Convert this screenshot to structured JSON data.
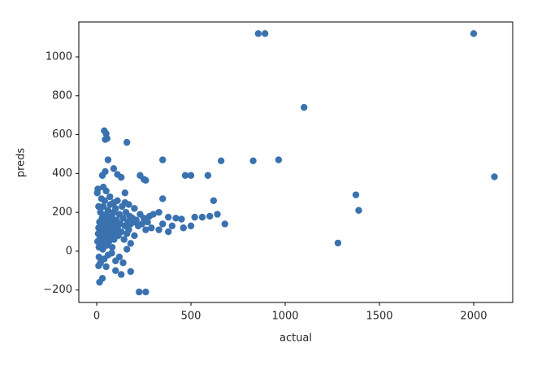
{
  "chart_data": {
    "type": "scatter",
    "xlabel": "actual",
    "ylabel": "preds",
    "color": "#3a72b0",
    "xlim": [
      -95,
      2207
    ],
    "ylim": [
      -264,
      1180
    ],
    "xticks": [
      0,
      500,
      1000,
      1500,
      2000
    ],
    "yticks": [
      {
        "value": -200,
        "label": "−200"
      },
      0,
      200,
      400,
      600,
      800,
      1000
    ],
    "x": [
      857,
      893,
      2000,
      1100,
      2110,
      1375,
      1390,
      1280,
      965,
      830,
      660,
      350,
      470,
      500,
      590,
      620,
      680,
      40,
      50,
      55,
      45,
      160,
      60,
      90,
      110,
      130,
      30,
      45,
      230,
      250,
      260,
      350,
      225,
      260,
      180,
      15,
      30,
      10,
      50,
      300,
      330,
      380,
      420,
      450,
      520,
      560,
      600,
      640,
      400,
      460,
      500,
      350,
      380,
      330,
      5,
      8,
      10,
      12,
      15,
      18,
      20,
      22,
      25,
      28,
      30,
      32,
      35,
      38,
      40,
      42,
      45,
      48,
      50,
      52,
      55,
      58,
      60,
      62,
      65,
      68,
      70,
      72,
      75,
      78,
      80,
      82,
      85,
      88,
      90,
      92,
      95,
      98,
      100,
      105,
      110,
      115,
      120,
      125,
      130,
      135,
      140,
      145,
      150,
      155,
      160,
      165,
      170,
      175,
      180,
      190,
      200,
      210,
      220,
      230,
      240,
      250,
      260,
      270,
      280,
      290,
      3,
      6,
      12,
      20,
      40,
      60,
      80,
      100,
      120,
      140,
      130,
      100,
      160,
      180,
      200,
      35,
      50,
      70,
      90,
      110,
      150,
      170,
      10,
      25,
      200,
      150
    ],
    "values": [
      1120,
      1120,
      1120,
      740,
      383,
      290,
      210,
      42,
      470,
      465,
      465,
      470,
      390,
      390,
      390,
      260,
      140,
      620,
      605,
      580,
      575,
      560,
      470,
      425,
      395,
      380,
      390,
      410,
      390,
      370,
      365,
      270,
      -210,
      -210,
      -105,
      -160,
      -140,
      -75,
      -80,
      190,
      200,
      175,
      170,
      165,
      175,
      175,
      180,
      190,
      130,
      120,
      130,
      140,
      100,
      110,
      50,
      90,
      120,
      20,
      150,
      70,
      200,
      100,
      40,
      170,
      130,
      10,
      230,
      80,
      110,
      260,
      160,
      60,
      190,
      30,
      140,
      90,
      210,
      120,
      50,
      170,
      100,
      240,
      130,
      70,
      180,
      20,
      150,
      110,
      200,
      60,
      140,
      90,
      220,
      160,
      120,
      80,
      190,
      140,
      100,
      230,
      170,
      60,
      130,
      200,
      90,
      150,
      110,
      180,
      140,
      170,
      150,
      160,
      130,
      190,
      140,
      170,
      110,
      150,
      180,
      120,
      300,
      320,
      -30,
      -60,
      -40,
      -20,
      -10,
      -50,
      -30,
      -60,
      -120,
      -100,
      10,
      40,
      80,
      330,
      310,
      280,
      250,
      260,
      250,
      240,
      230,
      270,
      220,
      300
    ]
  }
}
